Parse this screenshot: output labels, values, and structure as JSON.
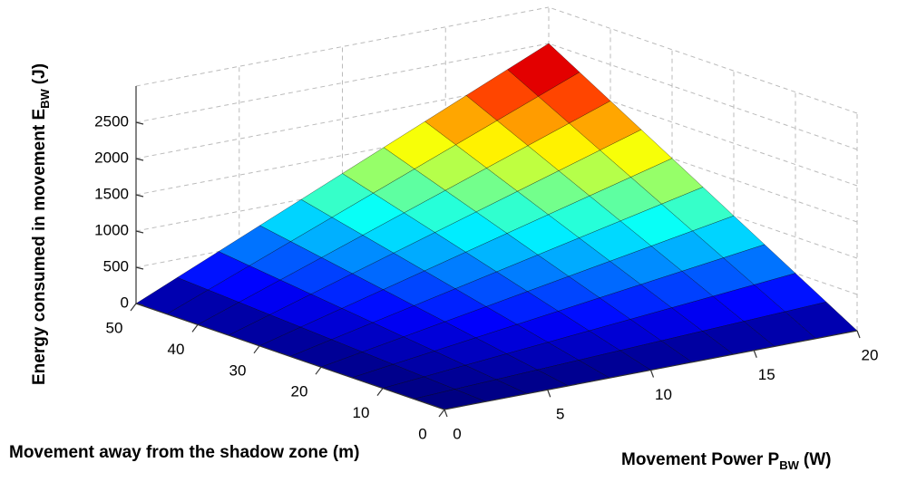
{
  "chart_data": {
    "type": "surface",
    "x_label": {
      "main": "Movement Power P",
      "sub": "BW",
      "unit": "(W)"
    },
    "y_label": "Movement away from the shadow zone (m)",
    "z_label": {
      "main": "Energy consumed in movement E",
      "sub": "BW",
      "unit": "(J)"
    },
    "x": [
      0,
      2,
      4,
      6,
      8,
      10,
      12,
      14,
      16,
      18,
      20
    ],
    "y": [
      0,
      5,
      10,
      15,
      20,
      25,
      30,
      35,
      40,
      45,
      50
    ],
    "z": [
      [
        0,
        0,
        0,
        0,
        0,
        0,
        0,
        0,
        0,
        0,
        0
      ],
      [
        0,
        25,
        50,
        75,
        100,
        125,
        150,
        175,
        200,
        225,
        250
      ],
      [
        0,
        50,
        100,
        150,
        200,
        250,
        300,
        350,
        400,
        450,
        500
      ],
      [
        0,
        75,
        150,
        225,
        300,
        375,
        450,
        525,
        600,
        675,
        750
      ],
      [
        0,
        100,
        200,
        300,
        400,
        500,
        600,
        700,
        800,
        900,
        1000
      ],
      [
        0,
        125,
        250,
        375,
        500,
        625,
        750,
        875,
        1000,
        1125,
        1250
      ],
      [
        0,
        150,
        300,
        450,
        600,
        750,
        900,
        1050,
        1200,
        1350,
        1500
      ],
      [
        0,
        175,
        350,
        525,
        700,
        875,
        1050,
        1225,
        1400,
        1575,
        1750
      ],
      [
        0,
        200,
        400,
        600,
        800,
        1000,
        1200,
        1400,
        1600,
        1800,
        2000
      ],
      [
        0,
        225,
        450,
        675,
        900,
        1125,
        1350,
        1575,
        1800,
        2025,
        2250
      ],
      [
        0,
        250,
        500,
        750,
        1000,
        1250,
        1500,
        1750,
        2000,
        2250,
        2500
      ]
    ],
    "xlim": [
      0,
      20
    ],
    "xticks": [
      0,
      5,
      10,
      15,
      20
    ],
    "ylim": [
      0,
      50
    ],
    "yticks": [
      0,
      10,
      20,
      30,
      40,
      50
    ],
    "zlim": [
      0,
      3000
    ],
    "zticks": [
      0,
      500,
      1000,
      1500,
      2000,
      2500
    ],
    "colormap": "jet",
    "grid": true
  }
}
